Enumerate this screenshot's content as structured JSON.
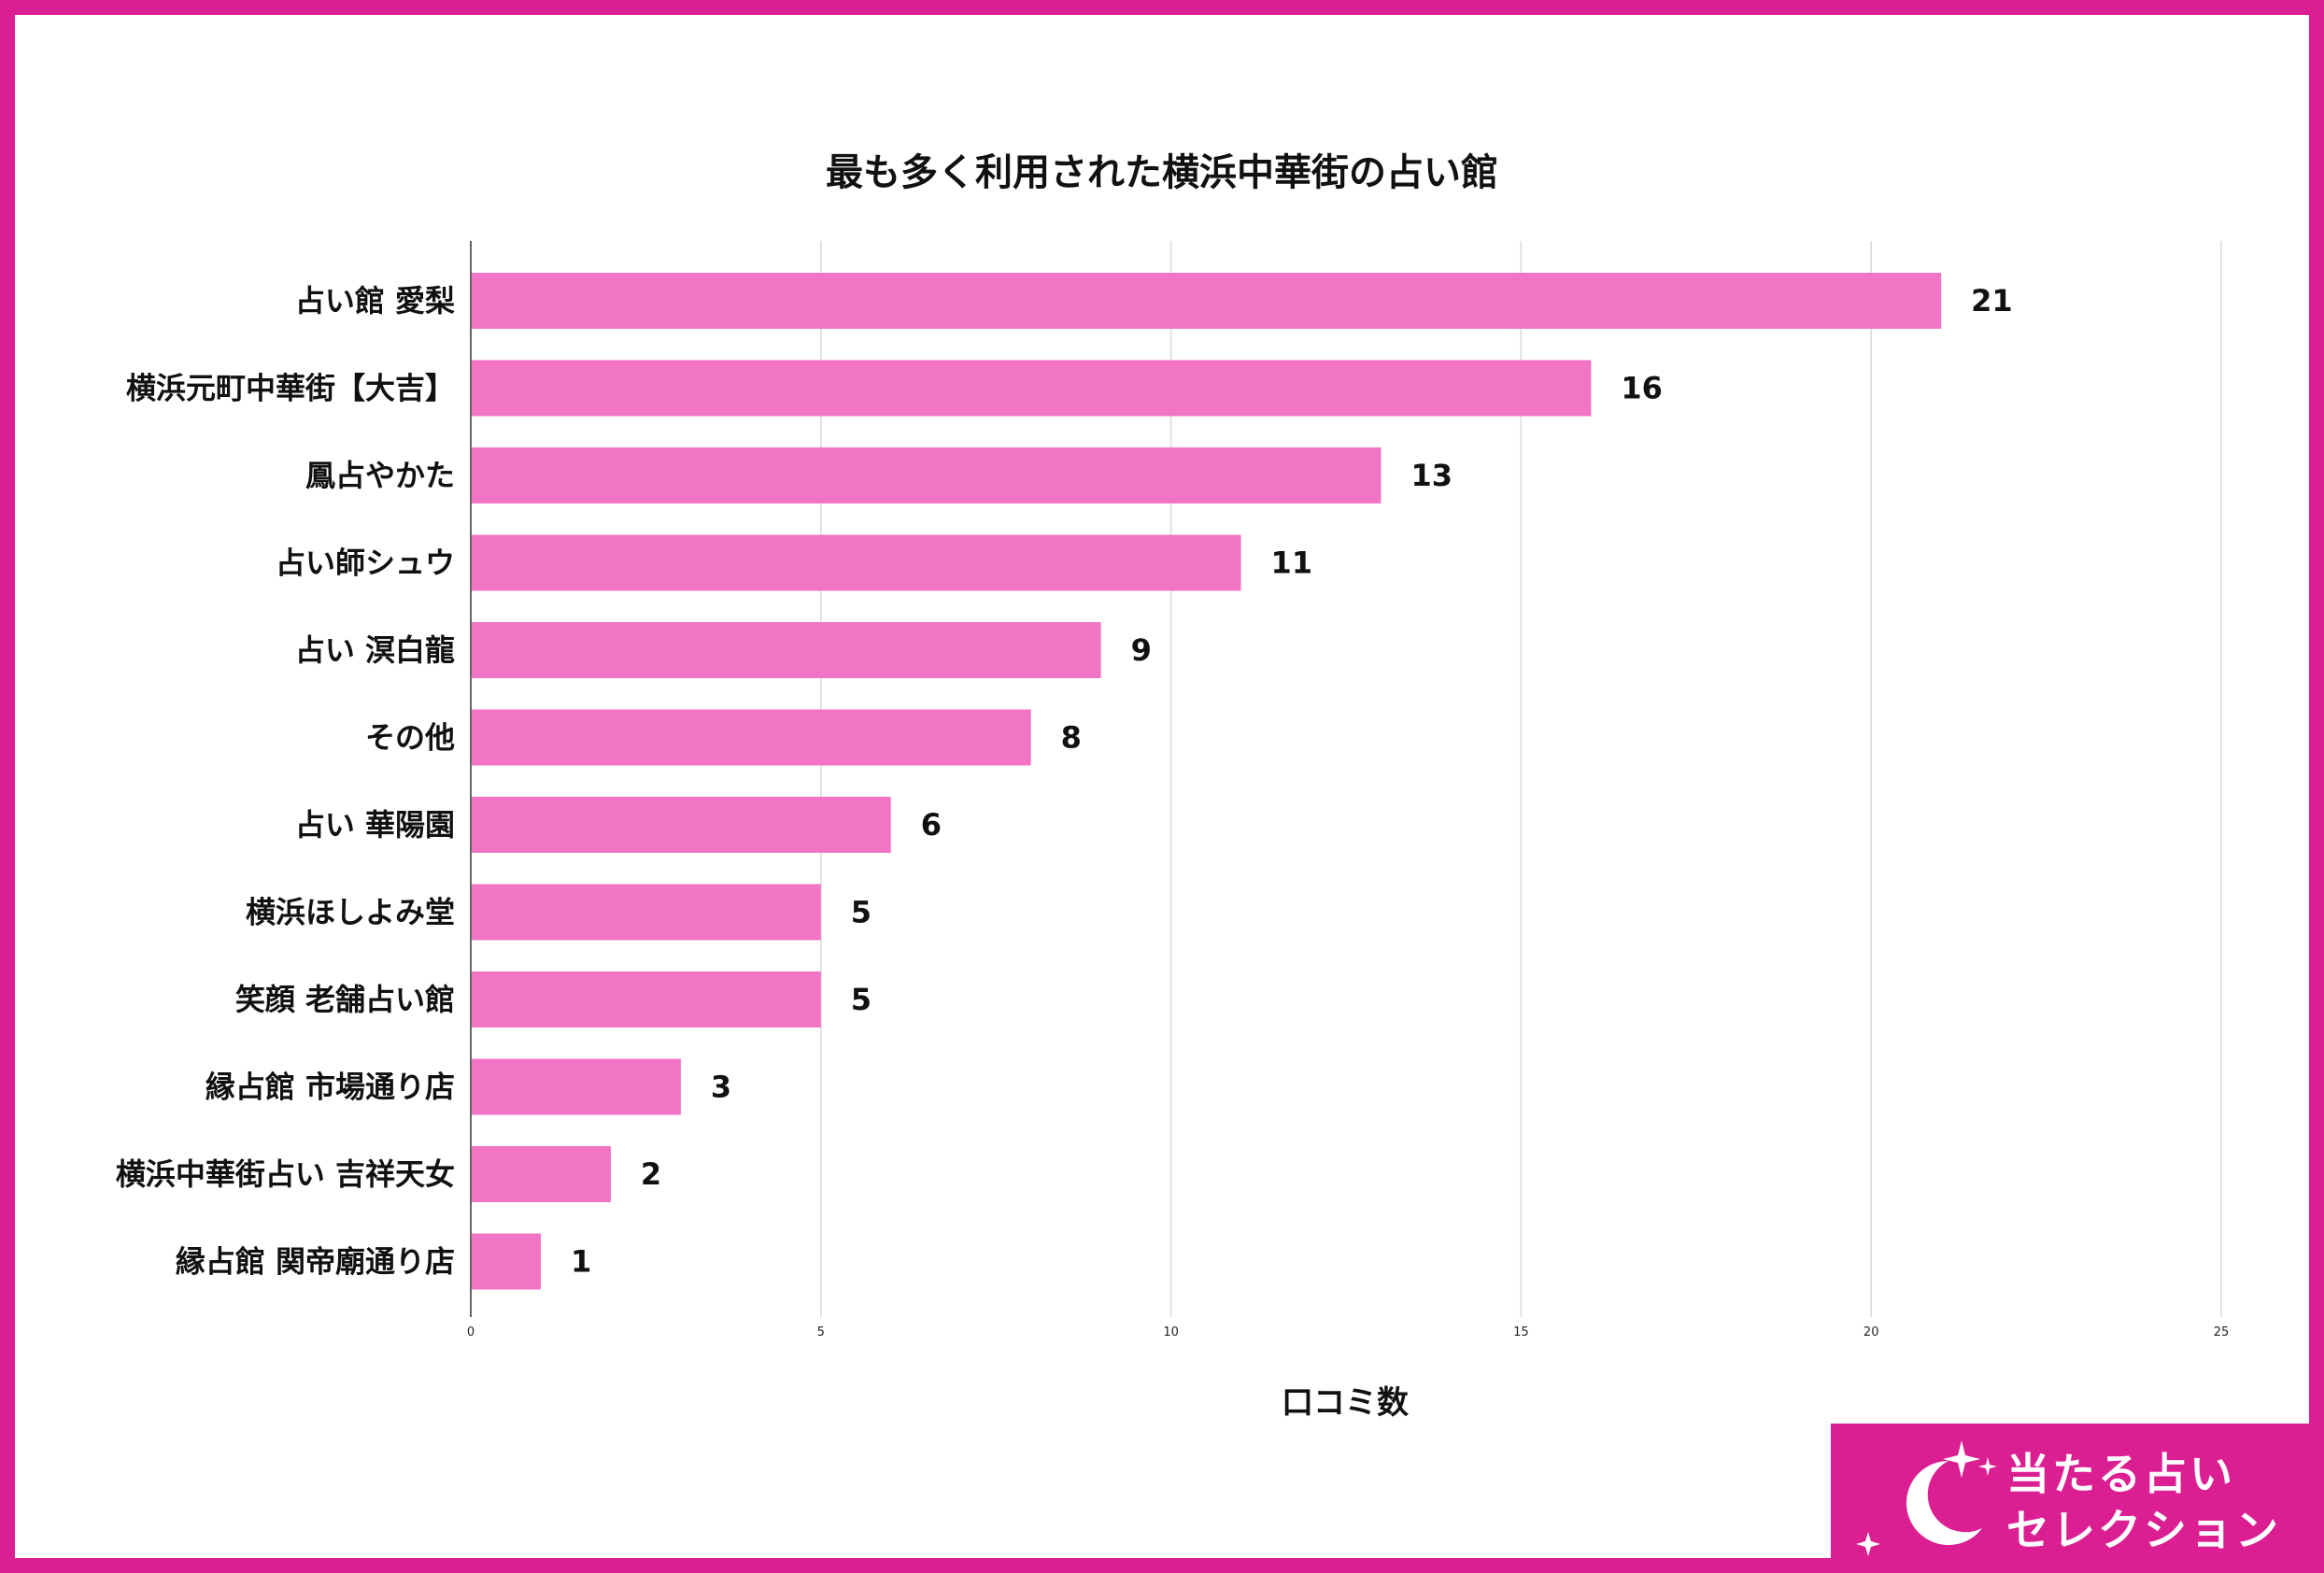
{
  "colors": {
    "border": "#dc1e93",
    "bar": "#f275c5",
    "gridline": "#d9d9d9",
    "axis": "#666666",
    "text": "#111111",
    "logo_bg": "#dc1e93",
    "logo_fg": "#ffffff"
  },
  "logo": {
    "line1": "当たる占い",
    "line2": "セレクション",
    "icon": "crescent-moon-with-sparkles-icon"
  },
  "chart_data": {
    "type": "bar",
    "orientation": "horizontal",
    "title": "最も多く利用された横浜中華街の占い館",
    "xlabel": "口コミ数",
    "ylabel": "",
    "xlim": [
      0,
      25
    ],
    "xticks": [
      "0",
      "5",
      "10",
      "15",
      "20",
      "25"
    ],
    "grid": true,
    "legend": "none",
    "categories": [
      "占い館 愛梨",
      "横浜元町中華街【大吉】",
      "鳳占やかた",
      "占い師シュウ",
      "占い 溟白龍",
      "その他",
      "占い 華陽園",
      "横浜ほしよみ堂",
      "笑顔 老舗占い館",
      "縁占館 市場通り店",
      "横浜中華街占い 吉祥天女",
      "縁占館 関帝廟通り店"
    ],
    "values": [
      21,
      16,
      13,
      11,
      9,
      8,
      6,
      5,
      5,
      3,
      2,
      1
    ]
  }
}
